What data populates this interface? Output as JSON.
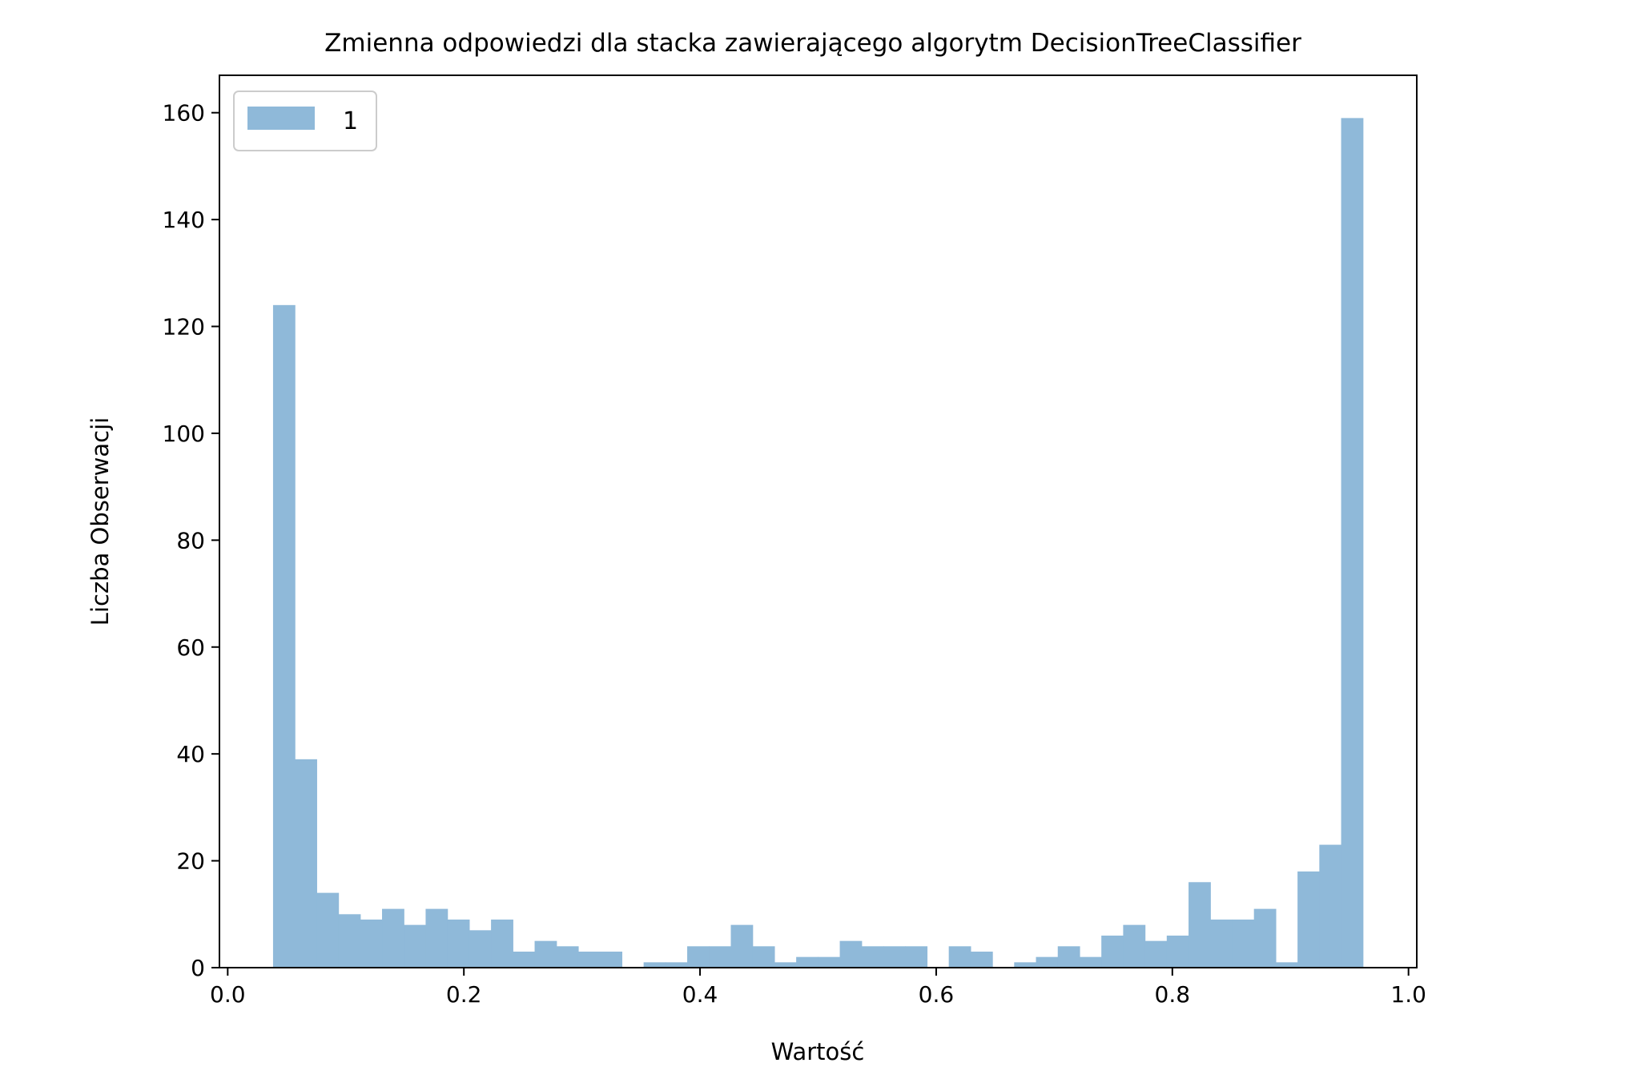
{
  "chart_data": {
    "type": "bar",
    "title": "Zmienna odpowiedzi dla stacka zawierającego algorytm DecisionTreeClassifier",
    "xlabel": "Wartość",
    "ylabel": "Liczba Obserwacji",
    "xlim": [
      -0.007,
      1.007
    ],
    "ylim": [
      0,
      167
    ],
    "x_ticks": [
      0.0,
      0.2,
      0.4,
      0.6,
      0.8,
      1.0
    ],
    "x_tick_labels": [
      "0.0",
      "0.2",
      "0.4",
      "0.6",
      "0.8",
      "1.0"
    ],
    "y_ticks": [
      0,
      20,
      40,
      60,
      80,
      100,
      120,
      140,
      160
    ],
    "y_tick_labels": [
      "0",
      "20",
      "40",
      "60",
      "80",
      "100",
      "120",
      "140",
      "160"
    ],
    "bin_start": 0.0384,
    "bin_width": 0.01846,
    "grid": false,
    "legend_position": "top-left",
    "series": [
      {
        "name": "1",
        "color": "#8fb9d9",
        "values": [
          124,
          39,
          14,
          10,
          9,
          11,
          8,
          11,
          9,
          7,
          9,
          3,
          5,
          4,
          3,
          3,
          0,
          1,
          1,
          4,
          4,
          8,
          4,
          1,
          2,
          2,
          5,
          4,
          4,
          4,
          0,
          4,
          3,
          0,
          1,
          2,
          4,
          2,
          6,
          8,
          5,
          6,
          16,
          9,
          9,
          11,
          1,
          18,
          23,
          159
        ]
      }
    ]
  }
}
